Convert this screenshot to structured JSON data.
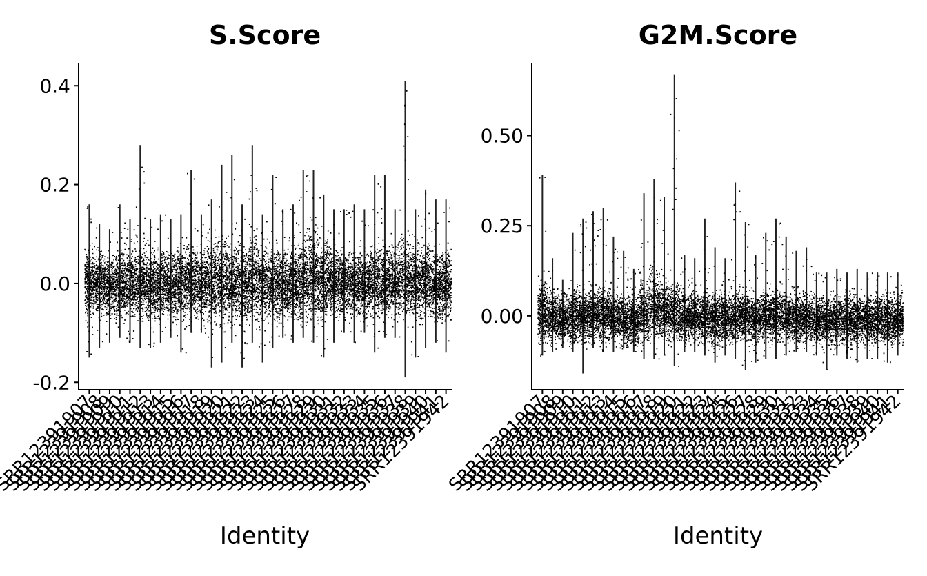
{
  "chart_data": [
    {
      "type": "scatter",
      "title": "S.Score",
      "xlabel": "Identity",
      "ylabel": "",
      "ylim": [
        -0.215,
        0.445
      ],
      "yticks": [
        {
          "value": 0.4,
          "label": "0.4"
        },
        {
          "value": 0.2,
          "label": "0.2"
        },
        {
          "value": 0.0,
          "label": "0.0"
        },
        {
          "value": -0.2,
          "label": "-0.2"
        }
      ],
      "categories": [
        "SRR12391907",
        "SRR12391908",
        "SRR12391909",
        "SRR12391910",
        "SRR12391911",
        "SRR12391912",
        "SRR12391913",
        "SRR12391914",
        "SRR12391915",
        "SRR12391916",
        "SRR12391917",
        "SRR12391918",
        "SRR12391919",
        "SRR12391920",
        "SRR12391921",
        "SRR12391922",
        "SRR12391923",
        "SRR12391924",
        "SRR12391925",
        "SRR12391926",
        "SRR12391927",
        "SRR12391928",
        "SRR12391929",
        "SRR12391930",
        "SRR12391931",
        "SRR12391932",
        "SRR12391933",
        "SRR12391934",
        "SRR12391935",
        "SRR12391936",
        "SRR12391937",
        "SRR12391938",
        "SRR12391939",
        "SRR12391940",
        "SRR12391941",
        "SRR12391942"
      ],
      "series": [
        {
          "min": [
            -0.15,
            -0.13,
            -0.12,
            -0.11,
            -0.12,
            -0.13,
            -0.13,
            -0.12,
            -0.11,
            -0.14,
            -0.1,
            -0.1,
            -0.17,
            -0.16,
            -0.12,
            -0.17,
            -0.12,
            -0.16,
            -0.13,
            -0.11,
            -0.12,
            -0.11,
            -0.12,
            -0.15,
            -0.12,
            -0.1,
            -0.12,
            -0.1,
            -0.14,
            -0.11,
            -0.11,
            -0.19,
            -0.15,
            -0.13,
            -0.12,
            -0.14
          ],
          "max": [
            0.16,
            0.12,
            0.11,
            0.16,
            0.13,
            0.28,
            0.13,
            0.14,
            0.13,
            0.14,
            0.23,
            0.14,
            0.17,
            0.24,
            0.26,
            0.16,
            0.28,
            0.14,
            0.22,
            0.15,
            0.16,
            0.23,
            0.23,
            0.18,
            0.15,
            0.15,
            0.16,
            0.15,
            0.22,
            0.22,
            0.15,
            0.41,
            0.15,
            0.19,
            0.17,
            0.17
          ],
          "spread": [
            0.06,
            0.055,
            0.05,
            0.055,
            0.055,
            0.06,
            0.055,
            0.055,
            0.055,
            0.06,
            0.06,
            0.055,
            0.07,
            0.07,
            0.06,
            0.065,
            0.07,
            0.06,
            0.06,
            0.055,
            0.06,
            0.07,
            0.075,
            0.065,
            0.06,
            0.055,
            0.055,
            0.055,
            0.06,
            0.06,
            0.06,
            0.065,
            0.06,
            0.06,
            0.055,
            0.055
          ],
          "center": [
            0.0,
            0.0,
            -0.005,
            0.0,
            0.0,
            0.005,
            -0.005,
            0.0,
            0.0,
            0.0,
            0.005,
            0.0,
            0.005,
            0.01,
            0.0,
            0.0,
            0.01,
            0.0,
            0.0,
            0.0,
            0.0,
            0.01,
            0.015,
            0.01,
            0.005,
            0.0,
            0.0,
            0.0,
            0.005,
            0.005,
            0.005,
            0.01,
            0.005,
            0.005,
            0.0,
            0.0
          ]
        }
      ]
    },
    {
      "type": "scatter",
      "title": "G2M.Score",
      "xlabel": "Identity",
      "ylabel": "",
      "ylim": [
        -0.205,
        0.7
      ],
      "yticks": [
        {
          "value": 0.5,
          "label": "0.50"
        },
        {
          "value": 0.25,
          "label": "0.25"
        },
        {
          "value": 0.0,
          "label": "0.00"
        }
      ],
      "categories": [
        "SRR12391907",
        "SRR12391908",
        "SRR12391909",
        "SRR12391910",
        "SRR12391911",
        "SRR12391912",
        "SRR12391913",
        "SRR12391914",
        "SRR12391915",
        "SRR12391916",
        "SRR12391917",
        "SRR12391918",
        "SRR12391919",
        "SRR12391920",
        "SRR12391921",
        "SRR12391922",
        "SRR12391923",
        "SRR12391924",
        "SRR12391925",
        "SRR12391926",
        "SRR12391927",
        "SRR12391928",
        "SRR12391929",
        "SRR12391930",
        "SRR12391931",
        "SRR12391932",
        "SRR12391933",
        "SRR12391934",
        "SRR12391935",
        "SRR12391936",
        "SRR12391937",
        "SRR12391938",
        "SRR12391939",
        "SRR12391940",
        "SRR12391941",
        "SRR12391942"
      ],
      "series": [
        {
          "min": [
            -0.11,
            -0.1,
            -0.09,
            -0.1,
            -0.16,
            -0.09,
            -0.1,
            -0.1,
            -0.09,
            -0.1,
            -0.12,
            -0.12,
            -0.11,
            -0.14,
            -0.1,
            -0.1,
            -0.11,
            -0.13,
            -0.11,
            -0.12,
            -0.15,
            -0.13,
            -0.12,
            -0.12,
            -0.11,
            -0.1,
            -0.1,
            -0.11,
            -0.15,
            -0.11,
            -0.12,
            -0.13,
            -0.12,
            -0.12,
            -0.13,
            -0.11
          ],
          "max": [
            0.39,
            0.16,
            0.1,
            0.23,
            0.27,
            0.29,
            0.3,
            0.22,
            0.18,
            0.13,
            0.34,
            0.38,
            0.33,
            0.67,
            0.17,
            0.16,
            0.27,
            0.19,
            0.16,
            0.37,
            0.26,
            0.17,
            0.23,
            0.27,
            0.22,
            0.18,
            0.19,
            0.12,
            0.12,
            0.13,
            0.12,
            0.13,
            0.12,
            0.12,
            0.12,
            0.12
          ],
          "spread": [
            0.07,
            0.06,
            0.05,
            0.06,
            0.06,
            0.06,
            0.065,
            0.055,
            0.06,
            0.06,
            0.07,
            0.08,
            0.065,
            0.065,
            0.055,
            0.055,
            0.06,
            0.065,
            0.055,
            0.06,
            0.055,
            0.055,
            0.06,
            0.06,
            0.055,
            0.055,
            0.055,
            0.055,
            0.055,
            0.055,
            0.055,
            0.055,
            0.055,
            0.055,
            0.055,
            0.055
          ],
          "center": [
            0.01,
            0.0,
            -0.005,
            0.0,
            0.0,
            0.005,
            0.005,
            0.0,
            -0.01,
            -0.01,
            0.01,
            0.03,
            0.015,
            0.01,
            0.0,
            0.0,
            0.0,
            -0.01,
            -0.005,
            0.0,
            0.0,
            -0.005,
            0.0,
            0.005,
            0.0,
            -0.005,
            -0.005,
            -0.01,
            -0.01,
            -0.01,
            -0.01,
            -0.01,
            -0.01,
            -0.01,
            -0.01,
            -0.01
          ]
        }
      ]
    }
  ]
}
